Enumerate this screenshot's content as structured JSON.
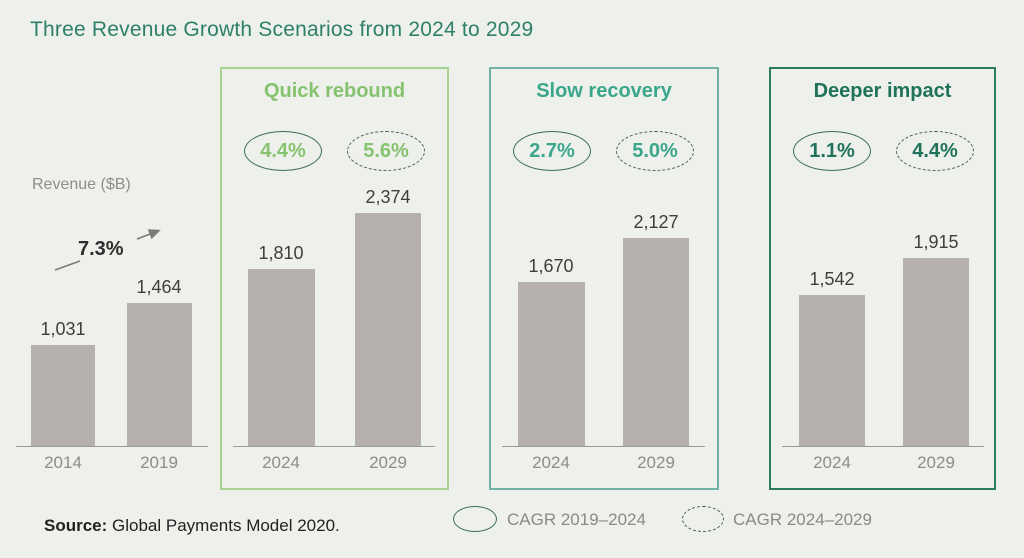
{
  "title": "Three Revenue Growth Scenarios from 2024 to 2029",
  "colors": {
    "background": "#eef0ec",
    "title": "#2e8068",
    "bar": "#b6b1ad",
    "axis": "#9a9a9a",
    "value_label": "#3e3e3e",
    "year_label": "#8c8c8c",
    "ylabel": "#8d8d8d",
    "annotation_text": "#2d2d2d",
    "annotation_arrow": "#7a7a7a",
    "oval_solid_stroke": "#3c6b60",
    "oval_dashed_stroke": "#4f5b56",
    "legend_text": "#8a8a8a",
    "source_text": "#222222"
  },
  "chart_data": [
    {
      "id": "historical",
      "type": "bar",
      "title": "",
      "ylabel": "Revenue ($B)",
      "categories": [
        "2014",
        "2019"
      ],
      "values": [
        1031,
        1464
      ],
      "value_labels": [
        "1,031",
        "1,464"
      ],
      "cagr_2014_2019": "7.3%",
      "ylim": [
        0,
        2500
      ],
      "grid": false
    },
    {
      "id": "quick-rebound",
      "type": "bar",
      "title": "Quick rebound",
      "categories": [
        "2024",
        "2029"
      ],
      "values": [
        1810,
        2374
      ],
      "value_labels": [
        "1,810",
        "2,374"
      ],
      "cagr_2019_2024": "4.4%",
      "cagr_2024_2029": "5.6%",
      "accent_text": "#86c36f",
      "accent_border": "#a6d391",
      "ylim": [
        0,
        2500
      ],
      "grid": false
    },
    {
      "id": "slow-recovery",
      "type": "bar",
      "title": "Slow recovery",
      "categories": [
        "2024",
        "2029"
      ],
      "values": [
        1670,
        2127
      ],
      "value_labels": [
        "1,670",
        "2,127"
      ],
      "cagr_2019_2024": "2.7%",
      "cagr_2024_2029": "5.0%",
      "accent_text": "#3aa78b",
      "accent_border": "#72b2a2",
      "ylim": [
        0,
        2500
      ],
      "grid": false
    },
    {
      "id": "deeper-impact",
      "type": "bar",
      "title": "Deeper impact",
      "categories": [
        "2024",
        "2029"
      ],
      "values": [
        1542,
        1915
      ],
      "value_labels": [
        "1,542",
        "1,915"
      ],
      "cagr_2019_2024": "1.1%",
      "cagr_2024_2029": "4.4%",
      "accent_text": "#20735a",
      "accent_border": "#2c7a61",
      "ylim": [
        0,
        2500
      ],
      "grid": false
    }
  ],
  "legend": [
    {
      "marker": "solid-oval",
      "label": "CAGR 2019–2024"
    },
    {
      "marker": "dashed-oval",
      "label": "CAGR 2024–2029"
    }
  ],
  "source": {
    "prefix": "Source:",
    "text": " Global Payments Model 2020."
  }
}
